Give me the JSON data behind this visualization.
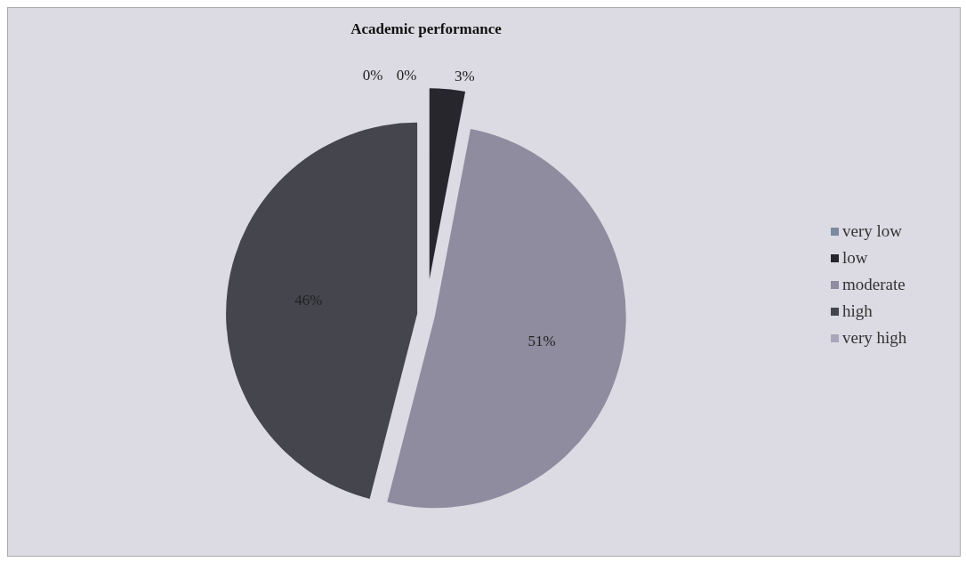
{
  "chart_data": {
    "type": "pie",
    "title": "Academic performance",
    "categories": [
      "very low",
      "low",
      "moderate",
      "high",
      "very high"
    ],
    "values": [
      0,
      3,
      51,
      46,
      0
    ],
    "value_labels": [
      "0%",
      "3%",
      "51%",
      "46%",
      "0%"
    ],
    "colors": [
      "#7d8aa0",
      "#26262c",
      "#8e8c9e",
      "#45454e",
      "#aaa6ba"
    ],
    "legend": "right"
  }
}
